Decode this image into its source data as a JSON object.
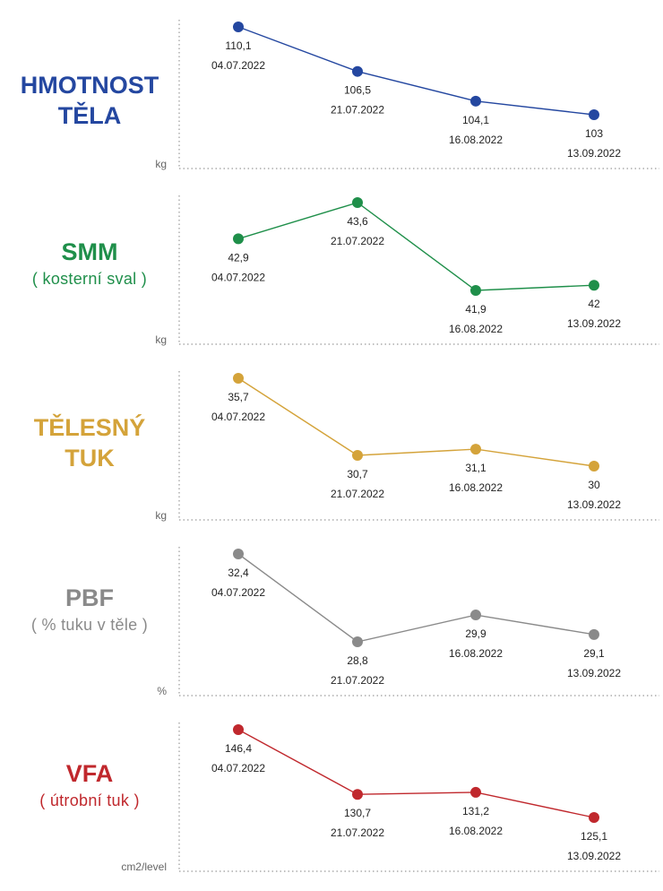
{
  "chart_data": [
    {
      "type": "line",
      "title": "HMOTNOST TĚLA",
      "title_lines": [
        "HMOTNOST",
        "TĚLA"
      ],
      "subtitle": "",
      "unit": "kg",
      "color": "#2447a0",
      "categories": [
        "04.07.2022",
        "21.07.2022",
        "16.08.2022",
        "13.09.2022"
      ],
      "values": [
        110.1,
        106.5,
        104.1,
        103
      ],
      "value_labels": [
        "110,1",
        "106,5",
        "104,1",
        "103"
      ],
      "xlabel": "",
      "ylabel": "",
      "grid": false
    },
    {
      "type": "line",
      "title": "SMM",
      "title_lines": [
        "SMM"
      ],
      "subtitle": "( kosterní sval )",
      "unit": "kg",
      "color": "#1f8f4a",
      "categories": [
        "04.07.2022",
        "21.07.2022",
        "16.08.2022",
        "13.09.2022"
      ],
      "values": [
        42.9,
        43.6,
        41.9,
        42
      ],
      "value_labels": [
        "42,9",
        "43,6",
        "41,9",
        "42"
      ],
      "xlabel": "",
      "ylabel": "",
      "grid": false
    },
    {
      "type": "line",
      "title": "TĚLESNÝ TUK",
      "title_lines": [
        "TĚLESNÝ",
        "TUK"
      ],
      "subtitle": "",
      "unit": "kg",
      "color": "#d4a33a",
      "categories": [
        "04.07.2022",
        "21.07.2022",
        "16.08.2022",
        "13.09.2022"
      ],
      "values": [
        35.7,
        30.7,
        31.1,
        30
      ],
      "value_labels": [
        "35,7",
        "30,7",
        "31,1",
        "30"
      ],
      "xlabel": "",
      "ylabel": "",
      "grid": false
    },
    {
      "type": "line",
      "title": "PBF",
      "title_lines": [
        "PBF"
      ],
      "subtitle": "( % tuku v těle )",
      "unit": "%",
      "color": "#8a8a8a",
      "categories": [
        "04.07.2022",
        "21.07.2022",
        "16.08.2022",
        "13.09.2022"
      ],
      "values": [
        32.4,
        28.8,
        29.9,
        29.1
      ],
      "value_labels": [
        "32,4",
        "28,8",
        "29,9",
        "29,1"
      ],
      "xlabel": "",
      "ylabel": "",
      "grid": false
    },
    {
      "type": "line",
      "title": "VFA",
      "title_lines": [
        "VFA"
      ],
      "subtitle": "( útrobní tuk )",
      "unit": "cm2/level",
      "color": "#c0282d",
      "categories": [
        "04.07.2022",
        "21.07.2022",
        "16.08.2022",
        "13.09.2022"
      ],
      "values": [
        146.4,
        130.7,
        131.2,
        125.1
      ],
      "value_labels": [
        "146,4",
        "130,7",
        "131,2",
        "125,1"
      ],
      "xlabel": "",
      "ylabel": "",
      "grid": false
    }
  ]
}
